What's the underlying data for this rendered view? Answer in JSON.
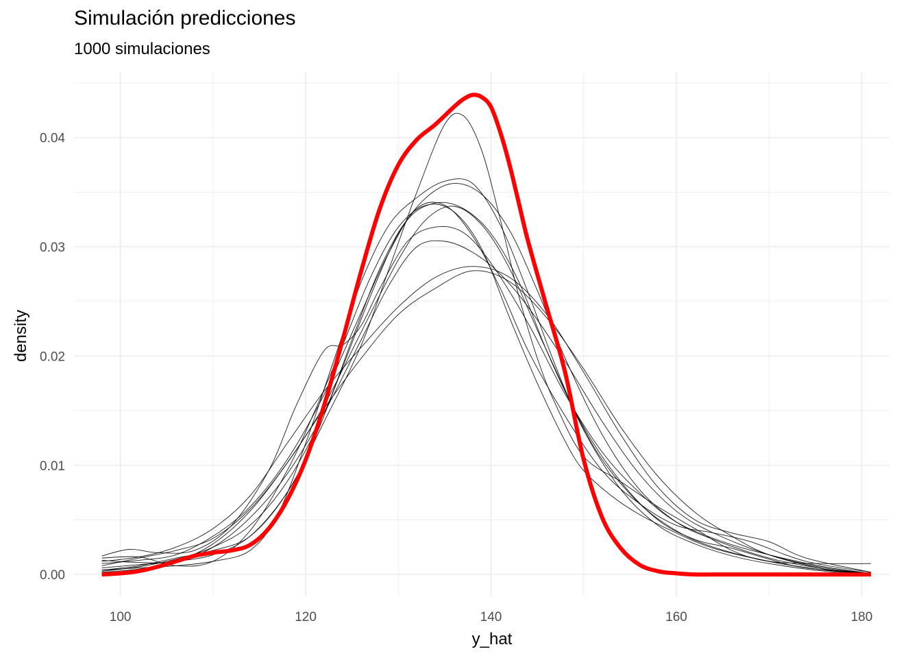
{
  "chart_data": {
    "type": "line",
    "title": "Simulación predicciones",
    "subtitle": "1000 simulaciones",
    "xlabel": "y_hat",
    "ylabel": "density",
    "xlim": [
      95,
      183
    ],
    "ylim": [
      -0.002,
      0.046
    ],
    "x_ticks": [
      100,
      120,
      140,
      160,
      180
    ],
    "x_tick_labels": [
      "100",
      "120",
      "140",
      "160",
      "180"
    ],
    "y_ticks": [
      0,
      0.01,
      0.02,
      0.03,
      0.04
    ],
    "y_tick_labels": [
      "0.00",
      "0.01",
      "0.02",
      "0.03",
      "0.04"
    ],
    "grid": true,
    "legend": "none",
    "colors": {
      "observed": "#ff0000",
      "simulated": "#000000",
      "grid": "#ebebeb"
    },
    "observed": {
      "x": [
        98,
        100,
        102,
        104,
        106,
        108,
        110,
        112,
        114,
        116,
        118,
        120,
        122,
        124,
        126,
        128,
        130,
        132,
        134,
        136,
        137,
        138,
        139,
        140,
        141,
        142,
        143,
        144,
        146,
        148,
        150,
        152,
        154,
        156,
        158,
        160,
        162,
        164,
        170,
        176,
        181
      ],
      "y": [
        0,
        0.0001,
        0.0003,
        0.0007,
        0.0012,
        0.0017,
        0.002,
        0.0022,
        0.0027,
        0.0042,
        0.0068,
        0.0105,
        0.0155,
        0.0215,
        0.0278,
        0.0335,
        0.0375,
        0.0398,
        0.0412,
        0.0428,
        0.0435,
        0.0439,
        0.0437,
        0.0428,
        0.0405,
        0.0375,
        0.034,
        0.0305,
        0.0245,
        0.0185,
        0.0105,
        0.0052,
        0.0024,
        0.0009,
        0.0003,
        0.0001,
        0,
        0,
        0,
        0,
        0
      ]
    },
    "simulated": [
      {
        "x": [
          98,
          102,
          106,
          110,
          114,
          118,
          122,
          126,
          130,
          133,
          136,
          139,
          142,
          146,
          150,
          154,
          158,
          162,
          166,
          170,
          174,
          181
        ],
        "y": [
          0.0008,
          0.0015,
          0.0022,
          0.0033,
          0.006,
          0.0102,
          0.0155,
          0.0222,
          0.0288,
          0.0325,
          0.0337,
          0.032,
          0.028,
          0.0205,
          0.0135,
          0.0085,
          0.005,
          0.0032,
          0.0024,
          0.0014,
          0.0006,
          0.0001
        ]
      },
      {
        "x": [
          98,
          101,
          104,
          108,
          112,
          116,
          119,
          122,
          124,
          126,
          128,
          131,
          134,
          137,
          140,
          144,
          148,
          152,
          156,
          160,
          165,
          170,
          176,
          181
        ],
        "y": [
          0.0017,
          0.0023,
          0.002,
          0.0022,
          0.0045,
          0.0095,
          0.0155,
          0.0205,
          0.021,
          0.0228,
          0.0262,
          0.0305,
          0.0318,
          0.0313,
          0.0285,
          0.023,
          0.0165,
          0.0112,
          0.0075,
          0.0048,
          0.003,
          0.0018,
          0.0007,
          0.0001
        ]
      },
      {
        "x": [
          98,
          102,
          106,
          110,
          114,
          118,
          122,
          126,
          129,
          132,
          135,
          138,
          141,
          144,
          148,
          152,
          156,
          160,
          164,
          168,
          174,
          181
        ],
        "y": [
          0.001,
          0.0013,
          0.0018,
          0.0035,
          0.0062,
          0.0105,
          0.0165,
          0.024,
          0.0295,
          0.0335,
          0.0338,
          0.031,
          0.0262,
          0.0205,
          0.0145,
          0.0095,
          0.0065,
          0.0045,
          0.0038,
          0.003,
          0.0012,
          0.0002
        ]
      },
      {
        "x": [
          98,
          102,
          106,
          110,
          114,
          118,
          122,
          126,
          129,
          132,
          135,
          138,
          141,
          144,
          148,
          152,
          156,
          160,
          164,
          170,
          176,
          181
        ],
        "y": [
          0.0013,
          0.0011,
          0.0012,
          0.0025,
          0.0052,
          0.0092,
          0.0148,
          0.0215,
          0.0265,
          0.03,
          0.0305,
          0.0295,
          0.0275,
          0.0245,
          0.0195,
          0.014,
          0.0092,
          0.0058,
          0.0038,
          0.0018,
          0.0006,
          0.0001
        ]
      },
      {
        "x": [
          98,
          102,
          106,
          110,
          114,
          118,
          122,
          126,
          129,
          132,
          135,
          137,
          139,
          141,
          143,
          145,
          147,
          150,
          154,
          158,
          162,
          166,
          170,
          176,
          181
        ],
        "y": [
          0.0004,
          0.0008,
          0.0015,
          0.0022,
          0.0035,
          0.0075,
          0.014,
          0.021,
          0.028,
          0.035,
          0.0412,
          0.042,
          0.0388,
          0.0325,
          0.0255,
          0.0198,
          0.0155,
          0.0108,
          0.0085,
          0.0062,
          0.0042,
          0.0022,
          0.0012,
          0.001,
          0.001
        ]
      },
      {
        "x": [
          98,
          102,
          106,
          110,
          114,
          118,
          121,
          124,
          127,
          130,
          133,
          136,
          139,
          142,
          145,
          148,
          152,
          156,
          160,
          164,
          170,
          176,
          181
        ],
        "y": [
          0.0006,
          0.0009,
          0.0012,
          0.0018,
          0.0035,
          0.0075,
          0.0125,
          0.019,
          0.0255,
          0.0312,
          0.0345,
          0.0358,
          0.0348,
          0.0315,
          0.026,
          0.0198,
          0.0128,
          0.0078,
          0.0048,
          0.0032,
          0.0015,
          0.0005,
          0.0001
        ]
      },
      {
        "x": [
          98,
          102,
          106,
          110,
          114,
          118,
          122,
          126,
          130,
          134,
          138,
          142,
          146,
          150,
          154,
          158,
          162,
          166,
          170,
          174,
          181
        ],
        "y": [
          0.0012,
          0.0016,
          0.0025,
          0.0042,
          0.0072,
          0.012,
          0.0168,
          0.0208,
          0.0245,
          0.0272,
          0.0282,
          0.0272,
          0.0238,
          0.0185,
          0.0128,
          0.008,
          0.005,
          0.0038,
          0.003,
          0.0015,
          0.0002
        ]
      },
      {
        "x": [
          98,
          102,
          106,
          110,
          114,
          117,
          120,
          123,
          126,
          129,
          132,
          135,
          138,
          141,
          144,
          147,
          150,
          154,
          158,
          162,
          166,
          170,
          176,
          181
        ],
        "y": [
          0.0004,
          0.0006,
          0.0008,
          0.0012,
          0.0022,
          0.0055,
          0.012,
          0.0195,
          0.0268,
          0.032,
          0.0345,
          0.036,
          0.0358,
          0.032,
          0.0258,
          0.019,
          0.0132,
          0.0078,
          0.0045,
          0.0028,
          0.0017,
          0.001,
          0.0003,
          0.0001
        ]
      },
      {
        "x": [
          98,
          102,
          106,
          110,
          114,
          118,
          122,
          126,
          130,
          134,
          138,
          142,
          146,
          150,
          154,
          158,
          162,
          166,
          170,
          176,
          181
        ],
        "y": [
          0.0002,
          0.0005,
          0.0012,
          0.0028,
          0.0058,
          0.0102,
          0.0152,
          0.0198,
          0.0238,
          0.0262,
          0.0278,
          0.0268,
          0.0235,
          0.0188,
          0.0135,
          0.009,
          0.0057,
          0.0035,
          0.0018,
          0.0005,
          0.0001
        ]
      },
      {
        "x": [
          98,
          102,
          106,
          110,
          114,
          118,
          122,
          125,
          128,
          131,
          134,
          137,
          140,
          143,
          146,
          149,
          152,
          156,
          160,
          164,
          170,
          176,
          181
        ],
        "y": [
          0.0003,
          0.0007,
          0.0014,
          0.0025,
          0.0045,
          0.0085,
          0.0148,
          0.0215,
          0.028,
          0.0325,
          0.034,
          0.0335,
          0.0312,
          0.0268,
          0.0205,
          0.015,
          0.0105,
          0.0065,
          0.004,
          0.0025,
          0.0012,
          0.0004,
          0.0001
        ]
      },
      {
        "x": [
          98,
          102,
          106,
          110,
          114,
          118,
          121,
          124,
          127,
          130,
          133,
          136,
          139,
          142,
          145,
          148,
          150,
          153,
          156,
          160,
          164,
          170,
          176,
          181
        ],
        "y": [
          0.0015,
          0.0016,
          0.0008,
          0.0012,
          0.004,
          0.0095,
          0.015,
          0.021,
          0.0272,
          0.0318,
          0.0338,
          0.0332,
          0.0298,
          0.0235,
          0.0175,
          0.0122,
          0.0095,
          0.0072,
          0.0055,
          0.0038,
          0.0024,
          0.0012,
          0.0004,
          0.0001
        ]
      }
    ]
  }
}
